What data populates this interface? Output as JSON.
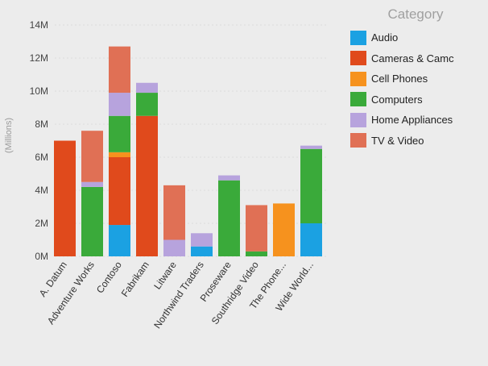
{
  "chart_data": {
    "type": "bar",
    "stacked": true,
    "title": "",
    "xlabel": "",
    "ylabel": "(Millions)",
    "ylim": [
      0,
      14
    ],
    "yticks": [
      0,
      2,
      4,
      6,
      8,
      10,
      12,
      14
    ],
    "ytick_labels": [
      "0M",
      "2M",
      "4M",
      "6M",
      "8M",
      "10M",
      "12M",
      "14M"
    ],
    "grid": true,
    "legend": {
      "title": "Category",
      "placement": "right"
    },
    "categories": [
      "A. Datum",
      "Adventure Works",
      "Contoso",
      "Fabrikam",
      "Litware",
      "Northwind Traders",
      "Proseware",
      "Southridge Video",
      "The Phone...",
      "Wide World..."
    ],
    "series": [
      {
        "name": "Audio",
        "color": "#1ba1e2",
        "values": [
          0,
          0,
          1.9,
          0,
          0,
          0.6,
          0,
          0,
          0,
          2.0
        ]
      },
      {
        "name": "Cameras & Camc",
        "color": "#e04a1c",
        "values": [
          7.0,
          0,
          4.1,
          8.5,
          0,
          0,
          0,
          0,
          0,
          0
        ]
      },
      {
        "name": "Cell Phones",
        "color": "#f6921e",
        "values": [
          0,
          0,
          0.3,
          0,
          0,
          0,
          0,
          0,
          3.2,
          0
        ]
      },
      {
        "name": "Computers",
        "color": "#3aaa3a",
        "values": [
          0,
          4.2,
          2.2,
          1.4,
          0,
          0,
          4.6,
          0.3,
          0,
          4.5
        ]
      },
      {
        "name": "Home Appliances",
        "color": "#b7a3dd",
        "values": [
          0,
          0.3,
          1.4,
          0.6,
          1.0,
          0.8,
          0.3,
          0,
          0,
          0.2
        ]
      },
      {
        "name": "TV & Video",
        "color": "#e07055",
        "values": [
          0,
          3.1,
          2.8,
          0,
          3.3,
          0,
          0,
          2.8,
          0,
          0
        ]
      }
    ]
  }
}
